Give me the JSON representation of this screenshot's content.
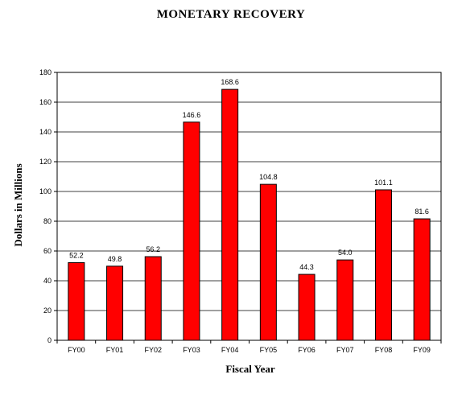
{
  "chart_data": {
    "type": "bar",
    "title": "MONETARY RECOVERY",
    "xlabel": "Fiscal Year",
    "ylabel": "Dollars in Millions",
    "categories": [
      "FY00",
      "FY01",
      "FY02",
      "FY03",
      "FY04",
      "FY05",
      "FY06",
      "FY07",
      "FY08",
      "FY09"
    ],
    "values": [
      52.2,
      49.8,
      56.2,
      146.6,
      168.6,
      104.8,
      44.3,
      54.0,
      101.1,
      81.6
    ],
    "data_labels": [
      "52.2",
      "49.8",
      "56.2",
      "146.6",
      "168.6",
      "104.8",
      "44.3",
      "54.0",
      "101.1",
      "81.6"
    ],
    "ylim": [
      0,
      180
    ],
    "yticks": [
      0,
      20,
      40,
      60,
      80,
      100,
      120,
      140,
      160,
      180
    ],
    "grid": true,
    "bar_color": "#ff0000",
    "bar_edge_color": "#000000"
  }
}
